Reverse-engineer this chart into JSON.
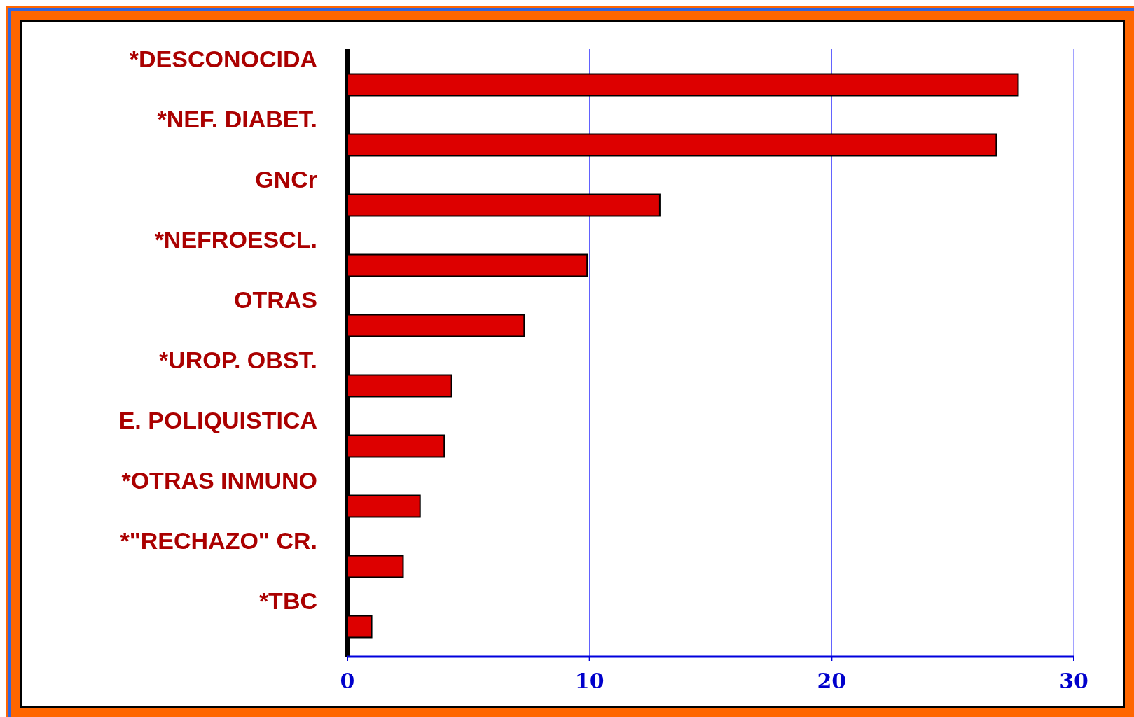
{
  "chart_data": {
    "type": "bar",
    "orientation": "horizontal",
    "categories": [
      "*DESCONOCIDA",
      "*NEF. DIABET.",
      "GNCr",
      "*NEFROESCL.",
      "OTRAS",
      "*UROP. OBST.",
      "E. POLIQUISTICA",
      "*OTRAS INMUNO",
      "*\"RECHAZO\" CR.",
      "*TBC"
    ],
    "values": [
      27.7,
      26.8,
      12.9,
      9.9,
      7.3,
      4.3,
      4.0,
      3.0,
      2.3,
      1.0
    ],
    "color": "#dd0000",
    "xlim": [
      0,
      30
    ],
    "xticks": [
      0,
      10,
      20,
      30
    ],
    "grid": "x"
  }
}
